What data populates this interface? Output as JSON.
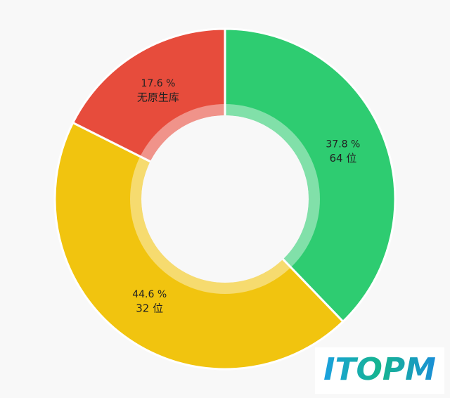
{
  "chart_data": {
    "type": "donut",
    "categories": [
      "64 位",
      "32 位",
      "无原生库"
    ],
    "values": [
      37.8,
      44.6,
      17.6
    ],
    "value_labels": [
      "37.8 %",
      "44.6 %",
      "17.6 %"
    ],
    "colors": [
      "#2ecc71",
      "#f1c40f",
      "#e74c3c"
    ]
  },
  "watermark": "ITOPM"
}
